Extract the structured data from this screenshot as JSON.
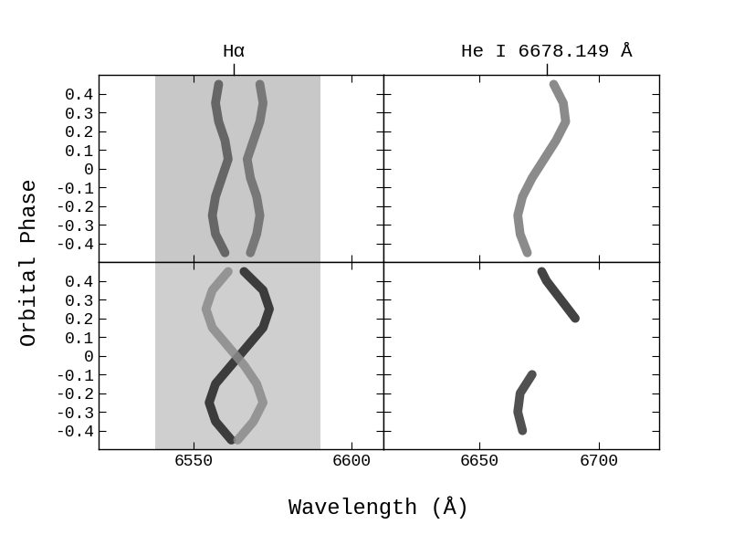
{
  "chart_data": [
    {
      "type": "line",
      "xlim": [
        6520,
        6610
      ],
      "xticks": [
        6550,
        6600
      ],
      "ylim": [
        -0.5,
        0.5
      ],
      "yticks": [
        -0.4,
        -0.3,
        -0.2,
        -0.1,
        0,
        0.1,
        0.2,
        0.3,
        0.4
      ],
      "tick_labels": "y",
      "band": [
        6538,
        6590
      ],
      "band_color": "#c8c8c8",
      "line_marker": {
        "text": "Hα",
        "x": 6562.8
      },
      "series": [
        {
          "color": "#555555",
          "x": [
            6560,
            6557,
            6556,
            6557,
            6559,
            6561,
            6560,
            6558,
            6557,
            6558
          ],
          "y": [
            -0.45,
            -0.35,
            -0.25,
            -0.15,
            -0.05,
            0.05,
            0.15,
            0.25,
            0.35,
            0.45
          ]
        },
        {
          "color": "#6a6a6a",
          "x": [
            6568,
            6570,
            6571,
            6570,
            6568,
            6567,
            6569,
            6571,
            6572,
            6571
          ],
          "y": [
            -0.45,
            -0.35,
            -0.25,
            -0.15,
            -0.05,
            0.05,
            0.15,
            0.25,
            0.35,
            0.45
          ]
        }
      ]
    },
    {
      "type": "line",
      "xlim": [
        6610,
        6725
      ],
      "xticks": [
        6650,
        6700
      ],
      "ylim": [
        -0.5,
        0.5
      ],
      "yticks": [
        -0.4,
        -0.3,
        -0.2,
        -0.1,
        0,
        0.1,
        0.2,
        0.3,
        0.4
      ],
      "tick_labels": false,
      "line_marker": {
        "text": "He I 6678.149 Å",
        "x": 6678.149
      },
      "series": [
        {
          "color": "#777777",
          "x": [
            6670,
            6667,
            6666,
            6668,
            6672,
            6677,
            6682,
            6686,
            6685,
            6681
          ],
          "y": [
            -0.45,
            -0.35,
            -0.25,
            -0.15,
            -0.05,
            0.05,
            0.15,
            0.25,
            0.35,
            0.45
          ]
        }
      ]
    },
    {
      "type": "line",
      "xlim": [
        6520,
        6610
      ],
      "xticks": [
        6550,
        6600
      ],
      "ylim": [
        -0.5,
        0.5
      ],
      "yticks": [
        -0.4,
        -0.3,
        -0.2,
        -0.1,
        0,
        0.1,
        0.2,
        0.3,
        0.4
      ],
      "tick_labels": true,
      "band": [
        6538,
        6590
      ],
      "band_color": "#cfcfcf",
      "series": [
        {
          "color": "#222222",
          "x": [
            6562,
            6557,
            6555,
            6557,
            6562,
            6567,
            6572,
            6574,
            6572,
            6566
          ],
          "y": [
            -0.45,
            -0.35,
            -0.25,
            -0.15,
            -0.05,
            0.05,
            0.15,
            0.25,
            0.35,
            0.45
          ]
        },
        {
          "color": "#8a8a8a",
          "x": [
            6564,
            6569,
            6572,
            6570,
            6566,
            6561,
            6556,
            6554,
            6556,
            6561
          ],
          "y": [
            -0.45,
            -0.35,
            -0.25,
            -0.15,
            -0.05,
            0.05,
            0.15,
            0.25,
            0.35,
            0.45
          ]
        }
      ]
    },
    {
      "type": "line",
      "xlim": [
        6610,
        6725
      ],
      "xticks": [
        6650,
        6700
      ],
      "ylim": [
        -0.5,
        0.5
      ],
      "yticks": [
        -0.4,
        -0.3,
        -0.2,
        -0.1,
        0,
        0.1,
        0.2,
        0.3,
        0.4
      ],
      "tick_labels": "x",
      "series": [
        {
          "color": "#333333",
          "x": [
            6668,
            6666,
            6667,
            6672
          ],
          "y": [
            -0.4,
            -0.3,
            -0.2,
            -0.1
          ]
        },
        {
          "color": "#222222",
          "x": [
            6690,
            6684,
            6678,
            6676
          ],
          "y": [
            0.2,
            0.3,
            0.4,
            0.45
          ]
        }
      ]
    }
  ],
  "xlabel": "Wavelength (Å)",
  "ylabel": "Orbital Phase"
}
